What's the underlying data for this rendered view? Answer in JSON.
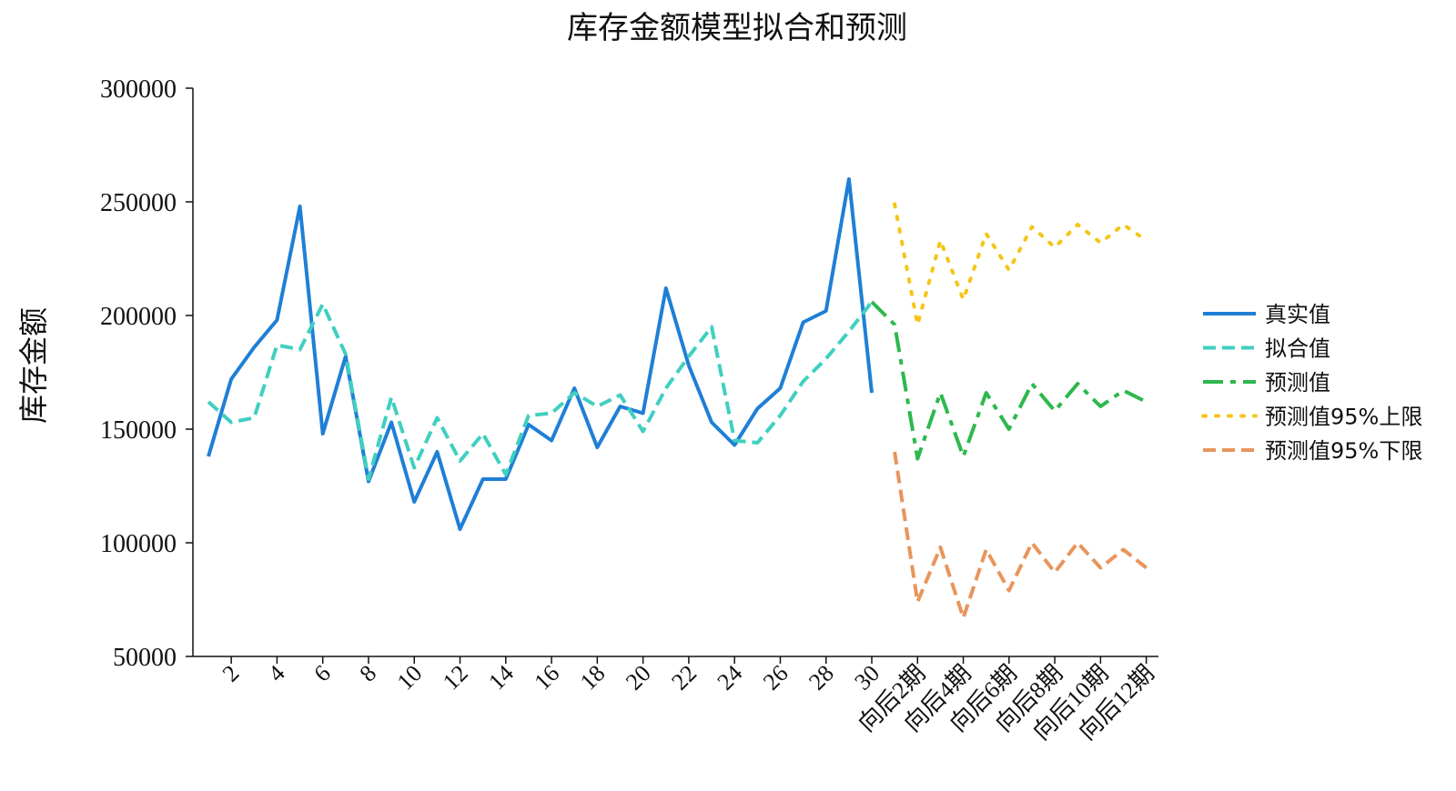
{
  "chart_data": {
    "type": "line",
    "title": "库存金额模型拟合和预测",
    "xlabel": "",
    "ylabel": "库存金额",
    "ylim": [
      50000,
      300000
    ],
    "y_ticks": [
      "300000",
      "250000",
      "200000",
      "150000",
      "100000",
      "50000"
    ],
    "x_tick_labels": [
      "2",
      "4",
      "6",
      "8",
      "10",
      "12",
      "14",
      "16",
      "18",
      "20",
      "22",
      "24",
      "26",
      "28",
      "30",
      "向后2期",
      "向后4期",
      "向后6期",
      "向后8期",
      "向后10期",
      "向后12期"
    ],
    "grid": false,
    "legend_position": "right",
    "series": [
      {
        "name": "真实值",
        "color": "#1F7FD6",
        "dash": "solid",
        "x": [
          1,
          2,
          3,
          4,
          5,
          6,
          7,
          8,
          9,
          10,
          11,
          12,
          13,
          14,
          15,
          16,
          17,
          18,
          19,
          20,
          21,
          22,
          23,
          24,
          25,
          26,
          27,
          28,
          29,
          30
        ],
        "values": [
          138000,
          172000,
          186000,
          198000,
          248000,
          148000,
          182000,
          127000,
          153000,
          118000,
          140000,
          106000,
          128000,
          128000,
          152000,
          145000,
          168000,
          142000,
          160000,
          157000,
          212000,
          178000,
          153000,
          143000,
          159000,
          168000,
          197000,
          202000,
          260000,
          166000
        ]
      },
      {
        "name": "拟合值",
        "color": "#40CFC0",
        "dash": "dashed",
        "x": [
          1,
          2,
          3,
          4,
          5,
          6,
          7,
          8,
          9,
          10,
          11,
          12,
          13,
          14,
          15,
          16,
          17,
          18,
          19,
          20,
          21,
          22,
          23,
          24,
          25,
          26,
          27,
          28,
          29,
          30
        ],
        "values": [
          162000,
          153000,
          155000,
          187000,
          185000,
          205000,
          183000,
          128000,
          164000,
          133000,
          155000,
          136000,
          148000,
          130000,
          156000,
          157000,
          166000,
          160000,
          165000,
          149000,
          168000,
          182000,
          195000,
          145000,
          144000,
          156000,
          171000,
          181000,
          193000,
          206000
        ]
      },
      {
        "name": "预测值",
        "color": "#2DB84D",
        "dash": "dashdot",
        "x": [
          30,
          31,
          32,
          33,
          34,
          35,
          36,
          37,
          38,
          39,
          40,
          41,
          42
        ],
        "values": [
          206000,
          196000,
          137000,
          166000,
          138000,
          166000,
          150000,
          170000,
          158000,
          170000,
          160000,
          167000,
          162000
        ]
      },
      {
        "name": "预测值95%上限",
        "color": "#F5C518",
        "dash": "dotted",
        "x": [
          31,
          32,
          33,
          34,
          35,
          36,
          37,
          38,
          39,
          40,
          41,
          42
        ],
        "values": [
          249000,
          196000,
          233000,
          207000,
          236000,
          220000,
          239000,
          230000,
          240000,
          232000,
          240000,
          233000
        ]
      },
      {
        "name": "预测值95%下限",
        "color": "#E8955C",
        "dash": "dashed",
        "x": [
          31,
          32,
          33,
          34,
          35,
          36,
          37,
          38,
          39,
          40,
          41,
          42
        ],
        "values": [
          140000,
          74000,
          98000,
          67000,
          97000,
          79000,
          100000,
          87000,
          100000,
          89000,
          97000,
          89000
        ]
      }
    ]
  }
}
